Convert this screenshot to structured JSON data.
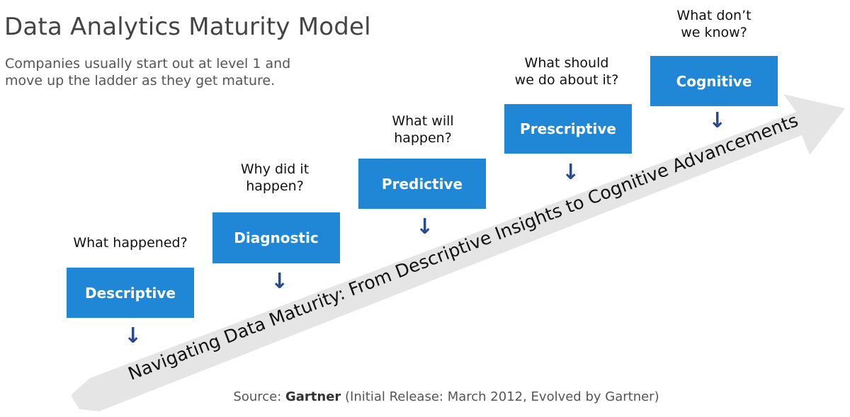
{
  "title": "Data Analytics Maturity Model",
  "subtitle_lines": [
    "Companies usually start out at level 1 and",
    "move up the ladder as they get mature."
  ],
  "arrow": {
    "label": "Navigating Data Maturity: From Descriptive Insights to Cognitive Advancements",
    "color": "#e5e5e5"
  },
  "stages": [
    {
      "name": "Descriptive",
      "question_lines": [
        "What happened?"
      ]
    },
    {
      "name": "Diagnostic",
      "question_lines": [
        "Why did it",
        "happen?"
      ]
    },
    {
      "name": "Predictive",
      "question_lines": [
        "What will",
        "happen?"
      ]
    },
    {
      "name": "Prescriptive",
      "question_lines": [
        "What should",
        "we do about it?"
      ]
    },
    {
      "name": "Cognitive",
      "question_lines": [
        "What don’t",
        "we know?"
      ]
    }
  ],
  "box_color": "#1f87d6",
  "down_arrow_glyph": "↓",
  "source": {
    "prefix": "Source: ",
    "org": "Gartner",
    "suffix": " (Initial Release: March 2012, Evolved by Gartner)"
  }
}
